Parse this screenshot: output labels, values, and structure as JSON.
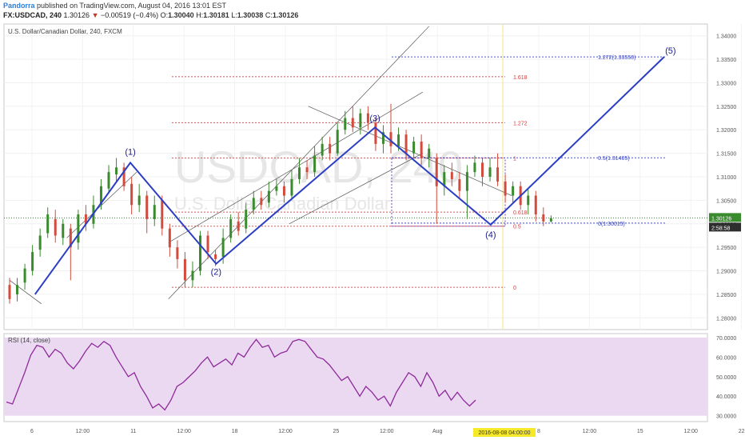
{
  "header": {
    "author": "Pandorra",
    "published_text": "published on TradingView.com, August 04, 2016 13:01 EST",
    "symbol": "FX:USDCAD, 240",
    "last": "1.30126",
    "change": "−0.00519 (−0.4%)",
    "o_label": "O:",
    "o": "1.30040",
    "h_label": "H:",
    "h": "1.30181",
    "l_label": "L:",
    "l": "1.30038",
    "c_label": "C:",
    "c": "1.30126"
  },
  "chart_data": [
    {
      "type": "candlestick",
      "title": "U.S. Dollar/Canadian Dollar, 240, FXCM",
      "watermark_symbol": "USDCAD, 240",
      "watermark_name": "U.S. Dollar/Canadian Dollar",
      "ylim": [
        1.2775,
        1.3425
      ],
      "y_ticks": [
        "1.28000",
        "1.28500",
        "1.29000",
        "1.29500",
        "1.30000",
        "1.30500",
        "1.31000",
        "1.31500",
        "1.32000",
        "1.32500",
        "1.33000",
        "1.33500",
        "1.34000"
      ],
      "x_ticks": [
        "6",
        "12:00",
        "11",
        "12:00",
        "18",
        "12:00",
        "25",
        "12:00",
        "Aug",
        "12:00",
        "8",
        "12:00",
        "15",
        "12:00",
        "22"
      ],
      "price_label": "1.30126",
      "countdown_label": "2:58:58",
      "date_highlight": "2016-08-08 04:00:00",
      "fib_retracement": {
        "levels": [
          "0",
          "0.5",
          "0.618",
          "1",
          "1.272",
          "1.618"
        ],
        "prices": [
          1.2865,
          1.2995,
          1.3025,
          1.314,
          1.3215,
          1.3313
        ]
      },
      "fib_projection": {
        "labels": [
          "0(1.30015)",
          "0.5(1.31405)",
          "1.272(1.33550)"
        ],
        "prices": [
          1.30015,
          1.31405,
          1.3355
        ]
      },
      "wave_labels": [
        "(1)",
        "(2)",
        "(3)",
        "(4)",
        "(5)"
      ],
      "wave_points": [
        {
          "t": 0.04,
          "price": 1.285
        },
        {
          "t": 0.19,
          "price": 1.313
        },
        {
          "t": 0.325,
          "price": 1.2915
        },
        {
          "t": 0.575,
          "price": 1.3205
        },
        {
          "t": 0.757,
          "price": 1.2998
        },
        {
          "t": 1.03,
          "price": 1.3355
        }
      ],
      "bars": [
        [
          0.0,
          1.287,
          1.284,
          1.2885,
          1.283
        ],
        [
          0.012,
          1.285,
          1.287,
          1.2885,
          1.2835
        ],
        [
          0.024,
          1.2875,
          1.2905,
          1.2915,
          1.286
        ],
        [
          0.036,
          1.29,
          1.294,
          1.2955,
          1.289
        ],
        [
          0.048,
          1.2945,
          1.2975,
          1.299,
          1.293
        ],
        [
          0.06,
          1.298,
          1.302,
          1.3035,
          1.297
        ],
        [
          0.072,
          1.301,
          1.2975,
          1.303,
          1.296
        ],
        [
          0.084,
          1.297,
          1.3,
          1.301,
          1.2955
        ],
        [
          0.096,
          1.299,
          1.295,
          1.3,
          1.288
        ],
        [
          0.108,
          1.296,
          1.302,
          1.303,
          1.2945
        ],
        [
          0.12,
          1.302,
          1.3,
          1.304,
          1.2985
        ],
        [
          0.132,
          1.3,
          1.304,
          1.306,
          1.299
        ],
        [
          0.144,
          1.304,
          1.308,
          1.3095,
          1.303
        ],
        [
          0.156,
          1.3075,
          1.311,
          1.3125,
          1.3065
        ],
        [
          0.168,
          1.3105,
          1.312,
          1.314,
          1.309
        ],
        [
          0.18,
          1.312,
          1.308,
          1.313,
          1.307
        ],
        [
          0.192,
          1.3085,
          1.304,
          1.31,
          1.302
        ],
        [
          0.204,
          1.304,
          1.306,
          1.3085,
          1.3025
        ],
        [
          0.216,
          1.306,
          1.301,
          1.307,
          1.298
        ],
        [
          0.228,
          1.301,
          1.304,
          1.306,
          1.2995
        ],
        [
          0.24,
          1.305,
          1.299,
          1.306,
          1.2975
        ],
        [
          0.252,
          1.299,
          1.295,
          1.3,
          1.293
        ],
        [
          0.264,
          1.295,
          1.2925,
          1.2965,
          1.2905
        ],
        [
          0.276,
          1.2925,
          1.288,
          1.294,
          1.2865
        ],
        [
          0.288,
          1.288,
          1.29,
          1.292,
          1.2865
        ],
        [
          0.3,
          1.29,
          1.2975,
          1.2985,
          1.289
        ],
        [
          0.312,
          1.2975,
          1.294,
          1.2985,
          1.2925
        ],
        [
          0.324,
          1.2935,
          1.2925,
          1.2945,
          1.291
        ],
        [
          0.336,
          1.293,
          1.297,
          1.299,
          1.2915
        ],
        [
          0.348,
          1.297,
          1.301,
          1.302,
          1.296
        ],
        [
          0.36,
          1.3005,
          1.2985,
          1.3025,
          1.2975
        ],
        [
          0.372,
          1.299,
          1.303,
          1.3045,
          1.298
        ],
        [
          0.384,
          1.303,
          1.3055,
          1.307,
          1.302
        ],
        [
          0.396,
          1.3055,
          1.304,
          1.307,
          1.303
        ],
        [
          0.408,
          1.3045,
          1.307,
          1.309,
          1.3035
        ],
        [
          0.42,
          1.307,
          1.308,
          1.3095,
          1.306
        ],
        [
          0.432,
          1.308,
          1.306,
          1.309,
          1.3045
        ],
        [
          0.444,
          1.306,
          1.3095,
          1.3115,
          1.305
        ],
        [
          0.456,
          1.3095,
          1.312,
          1.314,
          1.3085
        ],
        [
          0.468,
          1.312,
          1.311,
          1.3135,
          1.3095
        ],
        [
          0.48,
          1.311,
          1.3145,
          1.3165,
          1.31
        ],
        [
          0.492,
          1.3145,
          1.317,
          1.3185,
          1.3135
        ],
        [
          0.504,
          1.317,
          1.315,
          1.3185,
          1.3135
        ],
        [
          0.516,
          1.315,
          1.32,
          1.3215,
          1.3145
        ],
        [
          0.528,
          1.32,
          1.3225,
          1.324,
          1.319
        ],
        [
          0.54,
          1.3225,
          1.3205,
          1.325,
          1.3195
        ],
        [
          0.552,
          1.3205,
          1.3235,
          1.3245,
          1.319
        ],
        [
          0.564,
          1.3235,
          1.3215,
          1.325,
          1.32
        ],
        [
          0.576,
          1.3215,
          1.317,
          1.3225,
          1.3155
        ],
        [
          0.588,
          1.317,
          1.3195,
          1.321,
          1.315
        ],
        [
          0.6,
          1.3195,
          1.3165,
          1.3255,
          1.315
        ],
        [
          0.612,
          1.3165,
          1.319,
          1.3205,
          1.3155
        ],
        [
          0.624,
          1.319,
          1.315,
          1.32,
          1.3135
        ],
        [
          0.636,
          1.315,
          1.3175,
          1.3185,
          1.314
        ],
        [
          0.648,
          1.3175,
          1.314,
          1.319,
          1.3125
        ],
        [
          0.66,
          1.314,
          1.316,
          1.317,
          1.312
        ],
        [
          0.672,
          1.314,
          1.308,
          1.315,
          1.3
        ],
        [
          0.684,
          1.308,
          1.311,
          1.3125,
          1.306
        ],
        [
          0.696,
          1.311,
          1.3095,
          1.313,
          1.308
        ],
        [
          0.708,
          1.3095,
          1.307,
          1.311,
          1.3055
        ],
        [
          0.72,
          1.307,
          1.311,
          1.3125,
          1.301
        ],
        [
          0.732,
          1.311,
          1.313,
          1.3145,
          1.31
        ],
        [
          0.744,
          1.313,
          1.31,
          1.314,
          1.308
        ],
        [
          0.756,
          1.31,
          1.312,
          1.314,
          1.309
        ],
        [
          0.768,
          1.312,
          1.309,
          1.315,
          1.308
        ],
        [
          0.78,
          1.309,
          1.306,
          1.3105,
          1.3045
        ],
        [
          0.792,
          1.306,
          1.308,
          1.309,
          1.3045
        ],
        [
          0.804,
          1.308,
          1.304,
          1.309,
          1.303
        ],
        [
          0.816,
          1.304,
          1.306,
          1.3075,
          1.302
        ],
        [
          0.828,
          1.306,
          1.302,
          1.307,
          1.3005
        ],
        [
          0.84,
          1.302,
          1.3005,
          1.3035,
          1.2995
        ],
        [
          0.852,
          1.3005,
          1.3012,
          1.3018,
          1.3003
        ]
      ]
    },
    {
      "type": "line",
      "title": "RSI (14, close)",
      "ylim": [
        27,
        72
      ],
      "y_ticks": [
        "30.0000",
        "40.0000",
        "50.0000",
        "60.0000",
        "70.0000"
      ],
      "series": [
        {
          "values": [
            37,
            36,
            44,
            52,
            61,
            66,
            65,
            60,
            64,
            62,
            57,
            54,
            58,
            63,
            67,
            65,
            68,
            66,
            60,
            55,
            50,
            52,
            45,
            40,
            34,
            36,
            33,
            38,
            45,
            47,
            50,
            53,
            57,
            60,
            55,
            57,
            59,
            56,
            62,
            60,
            65,
            69,
            65,
            66,
            60,
            62,
            63,
            68,
            69,
            68,
            64,
            60,
            59,
            56,
            52,
            48,
            50,
            45,
            40,
            45,
            42,
            38,
            40,
            35,
            42,
            47,
            52,
            50,
            45,
            52,
            47,
            40,
            43,
            38,
            42,
            38,
            35,
            38
          ]
        }
      ]
    }
  ]
}
